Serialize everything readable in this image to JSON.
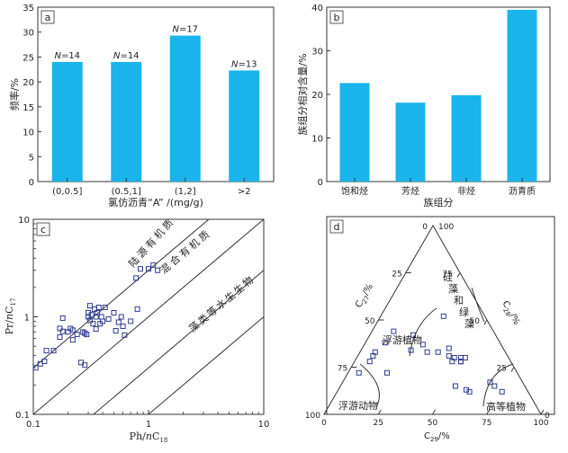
{
  "chart_data": [
    {
      "type": "bar",
      "panel_label": "a",
      "categories": [
        "(0,0.5]",
        "(0.5,1]",
        "(1,2]",
        ">2"
      ],
      "values": [
        24,
        24,
        29.3,
        22.3
      ],
      "annotations": [
        "N=14",
        "N=14",
        "N=17",
        "N=13"
      ],
      "ylabel": "频率/%",
      "xlabel": "氯仿沥青“A” /(mg/g)",
      "ylim": [
        0,
        35
      ],
      "yticks": [
        "0",
        "5",
        "10",
        "15",
        "20",
        "25",
        "30",
        "35"
      ],
      "bar_color": "#19b4ec"
    },
    {
      "type": "bar",
      "panel_label": "b",
      "categories": [
        "饱和烃",
        "芳烃",
        "非烃",
        "沥青质"
      ],
      "values": [
        22.6,
        18.1,
        19.8,
        39.4
      ],
      "ylabel": "族组分相对含量/%",
      "xlabel": "族组分",
      "ylim": [
        0,
        40
      ],
      "yticks": [
        "0",
        "10",
        "20",
        "30",
        "40"
      ],
      "bar_color": "#19b4ec"
    },
    {
      "type": "scatter",
      "panel_label": "c",
      "xlabel_main": "Ph/",
      "xlabel_italic": "n",
      "xlabel_tail": "C",
      "xlabel_sub": "18",
      "ylabel_main": "Pr/",
      "ylabel_italic": "n",
      "ylabel_tail": "C",
      "ylabel_sub": "17",
      "xscale": "log",
      "yscale": "log",
      "xlim": [
        0.1,
        10
      ],
      "ylim": [
        0.1,
        10
      ],
      "xticks": [
        "0.1",
        "1",
        "10"
      ],
      "yticks": [
        "0.1",
        "1",
        "10"
      ],
      "zone_labels": [
        "陆源有机质",
        "混合有机质",
        "藻类等水生生物"
      ],
      "points": [
        [
          0.105,
          0.3
        ],
        [
          0.115,
          0.33
        ],
        [
          0.125,
          0.35
        ],
        [
          0.13,
          0.45
        ],
        [
          0.15,
          0.45
        ],
        [
          0.17,
          0.62
        ],
        [
          0.17,
          0.76
        ],
        [
          0.18,
          0.71
        ],
        [
          0.18,
          0.97
        ],
        [
          0.2,
          0.7
        ],
        [
          0.21,
          0.76
        ],
        [
          0.22,
          0.73
        ],
        [
          0.22,
          0.58
        ],
        [
          0.24,
          0.66
        ],
        [
          0.26,
          0.34
        ],
        [
          0.27,
          0.7
        ],
        [
          0.28,
          0.32
        ],
        [
          0.28,
          0.68
        ],
        [
          0.29,
          0.66
        ],
        [
          0.3,
          1.0
        ],
        [
          0.3,
          1.1
        ],
        [
          0.31,
          1.3
        ],
        [
          0.31,
          0.92
        ],
        [
          0.32,
          1.05
        ],
        [
          0.33,
          0.85
        ],
        [
          0.34,
          1.2
        ],
        [
          0.35,
          1.0
        ],
        [
          0.35,
          0.75
        ],
        [
          0.36,
          1.1
        ],
        [
          0.37,
          1.25
        ],
        [
          0.38,
          0.85
        ],
        [
          0.39,
          1.0
        ],
        [
          0.4,
          0.9
        ],
        [
          0.42,
          1.25
        ],
        [
          0.45,
          0.95
        ],
        [
          0.5,
          1.1
        ],
        [
          0.52,
          0.72
        ],
        [
          0.55,
          0.88
        ],
        [
          0.58,
          1.0
        ],
        [
          0.6,
          0.8
        ],
        [
          0.62,
          0.65
        ],
        [
          0.7,
          0.9
        ],
        [
          0.78,
          2.5
        ],
        [
          0.8,
          1.2
        ],
        [
          0.85,
          3.1
        ],
        [
          1.0,
          3.1
        ],
        [
          1.1,
          3.4
        ],
        [
          1.2,
          3.0
        ]
      ],
      "marker_color": "#2e3b8f"
    },
    {
      "type": "scatter",
      "subtype": "ternary",
      "panel_label": "d",
      "axis_labels": [
        "C27/%",
        "C28/%",
        "C29/%"
      ],
      "ticks": [
        "0",
        "25",
        "50",
        "75",
        "100"
      ],
      "zone_labels": [
        "硅藻和绿藻",
        "浮游植物",
        "浮游动物",
        "高等植物"
      ],
      "points": [
        [
          0.52,
          0.19
        ],
        [
          0.22,
          0.6
        ],
        [
          0.22,
          0.73
        ],
        [
          0.28,
          0.65
        ],
        [
          0.31,
          0.62
        ],
        [
          0.33,
          0.6
        ],
        [
          0.38,
          0.53
        ],
        [
          0.44,
          0.46
        ],
        [
          0.34,
          0.43
        ],
        [
          0.42,
          0.38
        ],
        [
          0.37,
          0.36
        ],
        [
          0.33,
          0.36
        ],
        [
          0.33,
          0.31
        ],
        [
          0.35,
          0.25
        ],
        [
          0.3,
          0.25
        ],
        [
          0.3,
          0.22
        ],
        [
          0.28,
          0.23
        ],
        [
          0.28,
          0.23
        ],
        [
          0.3,
          0.2
        ],
        [
          0.13,
          0.28
        ],
        [
          0.12,
          0.27
        ],
        [
          0.15,
          0.32
        ],
        [
          0.28,
          0.27
        ],
        [
          0.31,
          0.27
        ],
        [
          0.17,
          0.15
        ],
        [
          0.15,
          0.14
        ],
        [
          0.12,
          0.12
        ]
      ],
      "marker_color": "#2e3b8f"
    }
  ]
}
